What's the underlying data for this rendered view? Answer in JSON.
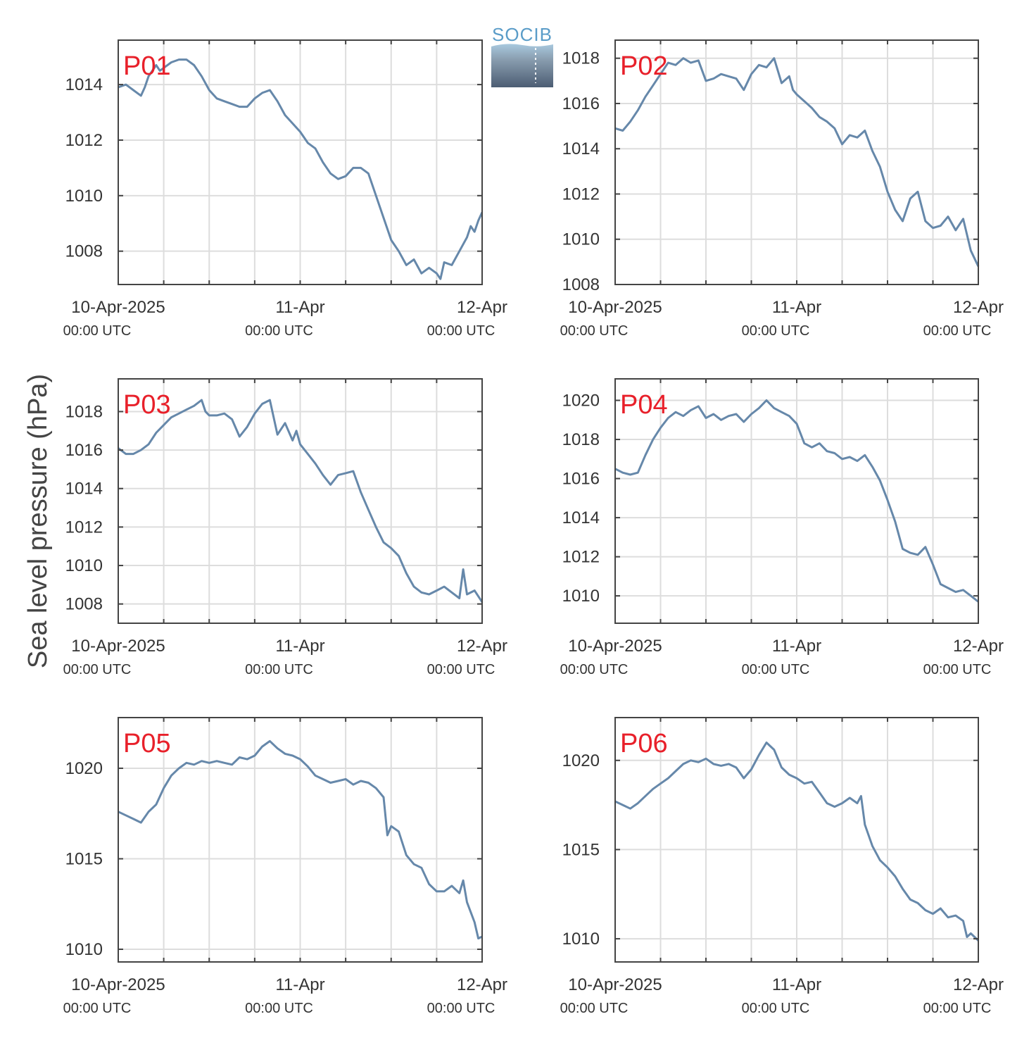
{
  "figure": {
    "ylabel": "Sea level pressure (hPa)",
    "logo_text": "SOCIB",
    "colors": {
      "line": "#6688aa",
      "title": "#e8202a",
      "grid": "#dddddd",
      "axis": "#444444",
      "text": "#333333"
    }
  },
  "chart_data": [
    {
      "type": "line",
      "title": "P01",
      "x_unit": "hours since 10-Apr-2025 00:00 UTC",
      "xlim": [
        0,
        48
      ],
      "ylim": [
        1006.8,
        1015.6
      ],
      "yticks": [
        1008,
        1010,
        1012,
        1014
      ],
      "xticks": [
        {
          "x": 0,
          "label": "10-Apr-2025",
          "sub": "00:00 UTC"
        },
        {
          "x": 24,
          "label": "11-Apr",
          "sub": "00:00 UTC"
        },
        {
          "x": 48,
          "label": "12-Apr",
          "sub": "00:00 UTC"
        }
      ],
      "grid": true,
      "series": [
        {
          "x": [
            0,
            1,
            2,
            3,
            3.5,
            4,
            4.5,
            5,
            5.5,
            6,
            7,
            8,
            9,
            10,
            11,
            12,
            13,
            14,
            15,
            16,
            17,
            18,
            19,
            20,
            21,
            22,
            23,
            24,
            25,
            26,
            27,
            28,
            29,
            30,
            31,
            32,
            33,
            34,
            35,
            35.5,
            36,
            37,
            38,
            39,
            40,
            41,
            42,
            42.5,
            43,
            44,
            45,
            46,
            46.5,
            47,
            47.5,
            48
          ],
          "y": [
            1013.9,
            1014.0,
            1013.8,
            1013.6,
            1013.9,
            1014.3,
            1014.5,
            1014.7,
            1014.5,
            1014.6,
            1014.8,
            1014.9,
            1014.9,
            1014.7,
            1014.3,
            1013.8,
            1013.5,
            1013.4,
            1013.3,
            1013.2,
            1013.2,
            1013.5,
            1013.7,
            1013.8,
            1013.4,
            1012.9,
            1012.6,
            1012.3,
            1011.9,
            1011.7,
            1011.2,
            1010.8,
            1010.6,
            1010.7,
            1011.0,
            1011.0,
            1010.8,
            1010.0,
            1009.2,
            1008.8,
            1008.4,
            1008.0,
            1007.5,
            1007.7,
            1007.2,
            1007.4,
            1007.2,
            1007.0,
            1007.6,
            1007.5,
            1008.0,
            1008.5,
            1008.9,
            1008.7,
            1009.1,
            1009.4
          ]
        }
      ]
    },
    {
      "type": "line",
      "title": "P02",
      "x_unit": "hours since 10-Apr-2025 00:00 UTC",
      "xlim": [
        0,
        48
      ],
      "ylim": [
        1008,
        1018.8
      ],
      "yticks": [
        1008,
        1010,
        1012,
        1014,
        1016,
        1018
      ],
      "xticks": [
        {
          "x": 0,
          "label": "10-Apr-2025",
          "sub": "00:00 UTC"
        },
        {
          "x": 24,
          "label": "11-Apr",
          "sub": "00:00 UTC"
        },
        {
          "x": 48,
          "label": "12-Apr",
          "sub": "00:00 UTC"
        }
      ],
      "grid": true,
      "series": [
        {
          "x": [
            0,
            1,
            2,
            3,
            4,
            5,
            6,
            7,
            8,
            9,
            10,
            11,
            12,
            13,
            14,
            15,
            16,
            17,
            18,
            19,
            20,
            21,
            22,
            23,
            23.5,
            24,
            25,
            26,
            27,
            28,
            29,
            30,
            31,
            32,
            33,
            34,
            35,
            36,
            37,
            38,
            39,
            40,
            41,
            42,
            43,
            44,
            45,
            46,
            47,
            48
          ],
          "y": [
            1014.9,
            1014.8,
            1015.2,
            1015.7,
            1016.3,
            1016.8,
            1017.3,
            1017.8,
            1017.7,
            1018.0,
            1017.8,
            1017.9,
            1017.0,
            1017.1,
            1017.3,
            1017.2,
            1017.1,
            1016.6,
            1017.3,
            1017.7,
            1017.6,
            1018.0,
            1016.9,
            1017.2,
            1016.6,
            1016.4,
            1016.1,
            1015.8,
            1015.4,
            1015.2,
            1014.9,
            1014.2,
            1014.6,
            1014.5,
            1014.8,
            1013.9,
            1013.2,
            1012.1,
            1011.3,
            1010.8,
            1011.8,
            1012.1,
            1010.8,
            1010.5,
            1010.6,
            1011.0,
            1010.4,
            1010.9,
            1009.5,
            1008.8
          ]
        }
      ]
    },
    {
      "type": "line",
      "title": "P03",
      "x_unit": "hours since 10-Apr-2025 00:00 UTC",
      "xlim": [
        0,
        48
      ],
      "ylim": [
        1007,
        1019.7
      ],
      "yticks": [
        1008,
        1010,
        1012,
        1014,
        1016,
        1018
      ],
      "xticks": [
        {
          "x": 0,
          "label": "10-Apr-2025",
          "sub": "00:00 UTC"
        },
        {
          "x": 24,
          "label": "11-Apr",
          "sub": "00:00 UTC"
        },
        {
          "x": 48,
          "label": "12-Apr",
          "sub": "00:00 UTC"
        }
      ],
      "grid": true,
      "series": [
        {
          "x": [
            0,
            1,
            2,
            3,
            4,
            5,
            6,
            7,
            8,
            9,
            10,
            11,
            11.5,
            12,
            13,
            14,
            15,
            16,
            17,
            18,
            19,
            20,
            21,
            22,
            23,
            23.5,
            24,
            25,
            26,
            27,
            28,
            29,
            30,
            31,
            32,
            33,
            34,
            35,
            36,
            37,
            38,
            39,
            40,
            41,
            42,
            43,
            44,
            45,
            45.5,
            46,
            47,
            48
          ],
          "y": [
            1016.1,
            1015.8,
            1015.8,
            1016.0,
            1016.3,
            1016.9,
            1017.3,
            1017.7,
            1017.9,
            1018.1,
            1018.3,
            1018.6,
            1018.0,
            1017.8,
            1017.8,
            1017.9,
            1017.6,
            1016.7,
            1017.2,
            1017.9,
            1018.4,
            1018.6,
            1016.8,
            1017.4,
            1016.5,
            1017.0,
            1016.3,
            1015.8,
            1015.3,
            1014.7,
            1014.2,
            1014.7,
            1014.8,
            1014.9,
            1013.8,
            1012.9,
            1012.0,
            1011.2,
            1010.9,
            1010.5,
            1009.6,
            1008.9,
            1008.6,
            1008.5,
            1008.7,
            1008.9,
            1008.6,
            1008.3,
            1009.8,
            1008.5,
            1008.7,
            1008.1
          ]
        }
      ]
    },
    {
      "type": "line",
      "title": "P04",
      "x_unit": "hours since 10-Apr-2025 00:00 UTC",
      "xlim": [
        0,
        48
      ],
      "ylim": [
        1008.6,
        1021.1
      ],
      "yticks": [
        1010,
        1012,
        1014,
        1016,
        1018,
        1020
      ],
      "xticks": [
        {
          "x": 0,
          "label": "10-Apr-2025",
          "sub": "00:00 UTC"
        },
        {
          "x": 24,
          "label": "11-Apr",
          "sub": "00:00 UTC"
        },
        {
          "x": 48,
          "label": "12-Apr",
          "sub": "00:00 UTC"
        }
      ],
      "grid": true,
      "series": [
        {
          "x": [
            0,
            1,
            2,
            3,
            4,
            5,
            6,
            7,
            8,
            9,
            10,
            11,
            12,
            13,
            14,
            15,
            16,
            17,
            18,
            19,
            20,
            21,
            22,
            23,
            24,
            25,
            26,
            27,
            28,
            29,
            30,
            31,
            32,
            33,
            34,
            35,
            36,
            37,
            38,
            39,
            40,
            41,
            42,
            43,
            44,
            45,
            46,
            47,
            48
          ],
          "y": [
            1016.5,
            1016.3,
            1016.2,
            1016.3,
            1017.2,
            1018.0,
            1018.6,
            1019.1,
            1019.4,
            1019.2,
            1019.5,
            1019.7,
            1019.1,
            1019.3,
            1019.0,
            1019.2,
            1019.3,
            1018.9,
            1019.3,
            1019.6,
            1020.0,
            1019.6,
            1019.4,
            1019.2,
            1018.8,
            1017.8,
            1017.6,
            1017.8,
            1017.4,
            1017.3,
            1017.0,
            1017.1,
            1016.9,
            1017.2,
            1016.6,
            1015.9,
            1014.9,
            1013.8,
            1012.4,
            1012.2,
            1012.1,
            1012.5,
            1011.6,
            1010.6,
            1010.4,
            1010.2,
            1010.3,
            1010.0,
            1009.7
          ]
        }
      ]
    },
    {
      "type": "line",
      "title": "P05",
      "x_unit": "hours since 10-Apr-2025 00:00 UTC",
      "xlim": [
        0,
        48
      ],
      "ylim": [
        1009.3,
        1022.8
      ],
      "yticks": [
        1010,
        1015,
        1020
      ],
      "xticks": [
        {
          "x": 0,
          "label": "10-Apr-2025",
          "sub": "00:00 UTC"
        },
        {
          "x": 24,
          "label": "11-Apr",
          "sub": "00:00 UTC"
        },
        {
          "x": 48,
          "label": "12-Apr",
          "sub": "00:00 UTC"
        }
      ],
      "grid": true,
      "series": [
        {
          "x": [
            0,
            1,
            2,
            3,
            4,
            5,
            6,
            7,
            8,
            9,
            10,
            11,
            12,
            13,
            14,
            15,
            16,
            17,
            18,
            19,
            20,
            21,
            22,
            23,
            24,
            25,
            26,
            27,
            28,
            29,
            30,
            31,
            32,
            33,
            34,
            35,
            35.5,
            36,
            37,
            38,
            39,
            40,
            41,
            42,
            43,
            44,
            45,
            45.5,
            46,
            47,
            47.5,
            48
          ],
          "y": [
            1017.6,
            1017.4,
            1017.2,
            1017.0,
            1017.6,
            1018.0,
            1018.9,
            1019.6,
            1020.0,
            1020.3,
            1020.2,
            1020.4,
            1020.3,
            1020.4,
            1020.3,
            1020.2,
            1020.6,
            1020.5,
            1020.7,
            1021.2,
            1021.5,
            1021.1,
            1020.8,
            1020.7,
            1020.5,
            1020.1,
            1019.6,
            1019.4,
            1019.2,
            1019.3,
            1019.4,
            1019.1,
            1019.3,
            1019.2,
            1018.9,
            1018.4,
            1016.3,
            1016.8,
            1016.5,
            1015.2,
            1014.7,
            1014.5,
            1013.6,
            1013.2,
            1013.2,
            1013.5,
            1013.1,
            1013.8,
            1012.6,
            1011.5,
            1010.6,
            1010.7
          ]
        }
      ]
    },
    {
      "type": "line",
      "title": "P06",
      "x_unit": "hours since 10-Apr-2025 00:00 UTC",
      "xlim": [
        0,
        48
      ],
      "ylim": [
        1008.7,
        1022.4
      ],
      "yticks": [
        1010,
        1015,
        1020
      ],
      "xticks": [
        {
          "x": 0,
          "label": "10-Apr-2025",
          "sub": "00:00 UTC"
        },
        {
          "x": 24,
          "label": "11-Apr",
          "sub": "00:00 UTC"
        },
        {
          "x": 48,
          "label": "12-Apr",
          "sub": "00:00 UTC"
        }
      ],
      "grid": true,
      "series": [
        {
          "x": [
            0,
            1,
            2,
            3,
            4,
            5,
            6,
            7,
            8,
            9,
            10,
            11,
            12,
            13,
            14,
            15,
            16,
            17,
            18,
            19,
            20,
            21,
            22,
            23,
            24,
            25,
            26,
            27,
            28,
            29,
            30,
            31,
            32,
            32.5,
            33,
            34,
            35,
            36,
            37,
            38,
            39,
            40,
            41,
            42,
            43,
            44,
            45,
            46,
            46.5,
            47,
            48
          ],
          "y": [
            1017.7,
            1017.5,
            1017.3,
            1017.6,
            1018.0,
            1018.4,
            1018.7,
            1019.0,
            1019.4,
            1019.8,
            1020.0,
            1019.9,
            1020.1,
            1019.8,
            1019.7,
            1019.8,
            1019.6,
            1019.0,
            1019.5,
            1020.3,
            1021.0,
            1020.6,
            1019.6,
            1019.2,
            1019.0,
            1018.7,
            1018.8,
            1018.2,
            1017.6,
            1017.4,
            1017.6,
            1017.9,
            1017.6,
            1018.0,
            1016.4,
            1015.2,
            1014.4,
            1014.0,
            1013.5,
            1012.8,
            1012.2,
            1012.0,
            1011.6,
            1011.4,
            1011.7,
            1011.2,
            1011.3,
            1011.0,
            1010.1,
            1010.3,
            1009.9
          ]
        }
      ]
    }
  ]
}
